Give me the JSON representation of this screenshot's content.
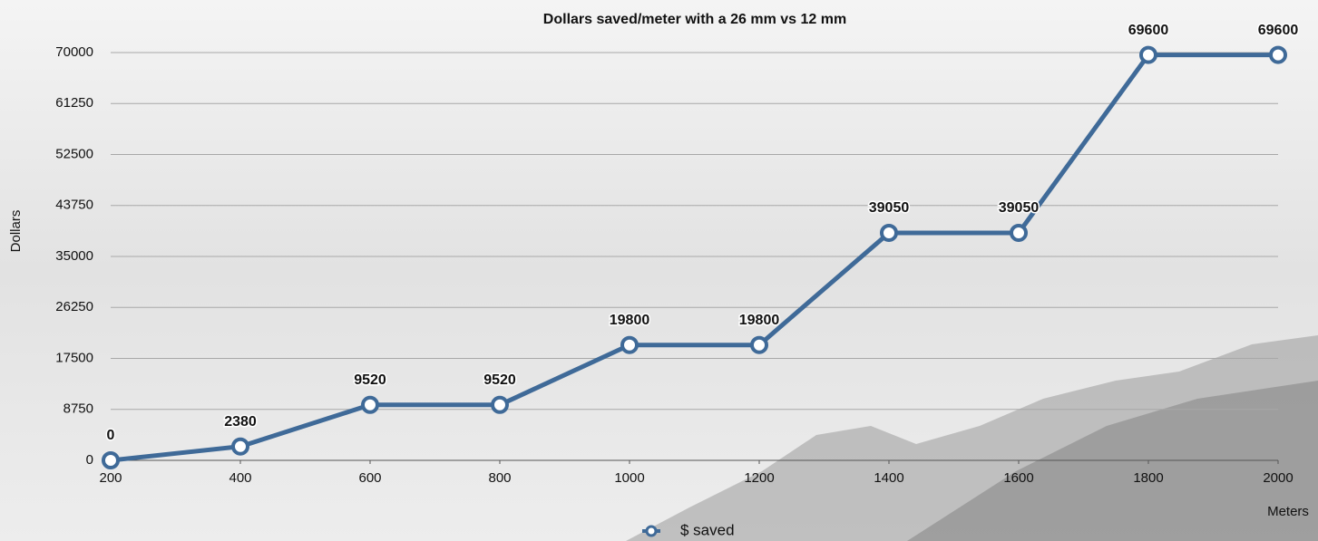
{
  "chart_data": {
    "type": "line",
    "title": "Dollars saved/meter with a 26 mm vs 12 mm",
    "x_label": "Meters",
    "y_label": "Dollars",
    "x": [
      200,
      400,
      600,
      800,
      1000,
      1200,
      1400,
      1600,
      1800,
      2000
    ],
    "series": [
      {
        "name": "$ saved",
        "color": "#3f6a98",
        "values": [
          0,
          2380,
          9520,
          9520,
          19800,
          19800,
          39050,
          39050,
          69600,
          69600
        ]
      }
    ],
    "xlim": [
      200,
      2000
    ],
    "xticks": [
      200,
      400,
      600,
      800,
      1000,
      1200,
      1400,
      1600,
      1800,
      2000
    ],
    "ylim": [
      0,
      70000
    ],
    "yticks": [
      0,
      8750,
      17500,
      26250,
      35000,
      43750,
      52500,
      61250,
      70000
    ],
    "grid": true,
    "legend": "bottom"
  }
}
